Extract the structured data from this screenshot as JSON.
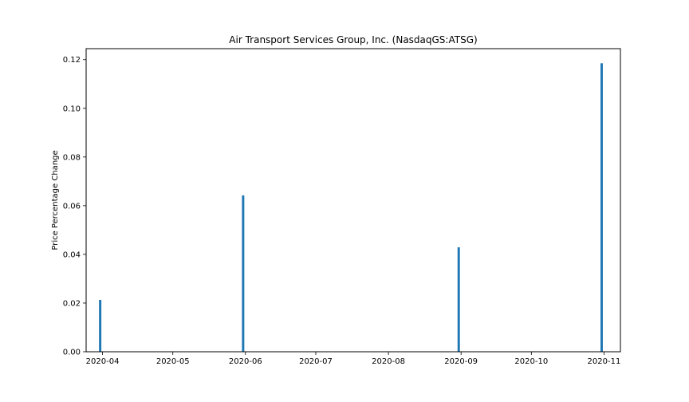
{
  "chart_data": {
    "type": "bar",
    "title": "Air Transport Services Group, Inc. (NasdaqGS:ATSG)",
    "xlabel": "",
    "ylabel": "Price Percentage Change",
    "x": [
      "2020-03-31",
      "2020-05-31",
      "2020-08-31",
      "2020-10-31"
    ],
    "values": [
      0.0213,
      0.0642,
      0.0429,
      0.1185
    ],
    "xlim": [
      "2020-03-25",
      "2020-11-08"
    ],
    "ylim": [
      0,
      0.1245
    ],
    "x_ticks": [
      "2020-04",
      "2020-05",
      "2020-06",
      "2020-07",
      "2020-08",
      "2020-09",
      "2020-10",
      "2020-11"
    ],
    "x_tick_dates": [
      "2020-04-01",
      "2020-05-01",
      "2020-06-01",
      "2020-07-01",
      "2020-08-01",
      "2020-09-01",
      "2020-10-01",
      "2020-11-01"
    ],
    "y_ticks": [
      "0.00",
      "0.02",
      "0.04",
      "0.06",
      "0.08",
      "0.10",
      "0.12"
    ],
    "y_tick_values": [
      0,
      0.02,
      0.04,
      0.06,
      0.08,
      0.1,
      0.12
    ],
    "bar_width_days": 1,
    "grid": false,
    "legend": "none",
    "colors": {
      "bar": "#1f77b4",
      "axes": "#000000",
      "background": "#ffffff"
    }
  }
}
